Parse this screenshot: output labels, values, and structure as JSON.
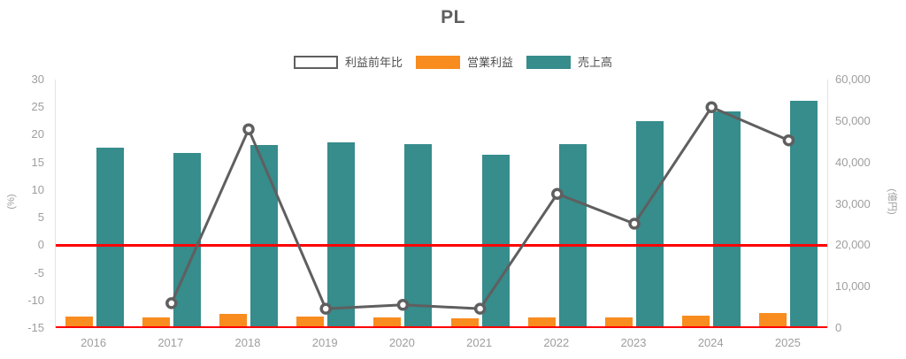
{
  "chart_data": {
    "type": "combo",
    "title": "PL",
    "categories": [
      "2016",
      "2017",
      "2018",
      "2019",
      "2020",
      "2021",
      "2022",
      "2023",
      "2024",
      "2025"
    ],
    "series": [
      {
        "key": "operating-profit",
        "name": "営業利益",
        "type": "bar",
        "axis": "right",
        "slot": 0,
        "color": "#f88c1e",
        "values": [
          2800,
          2500,
          3400,
          2800,
          2500,
          2300,
          2500,
          2600,
          3000,
          3600
        ]
      },
      {
        "key": "revenue",
        "name": "売上高",
        "type": "bar",
        "axis": "right",
        "slot": 1,
        "color": "#378c8c",
        "values": [
          43600,
          42200,
          44200,
          44900,
          44400,
          41900,
          44400,
          49900,
          52400,
          54900
        ]
      },
      {
        "key": "profit-yoy",
        "name": "利益前年比",
        "type": "line",
        "axis": "left",
        "color": "#5f5f5f",
        "marker_fill": "#ffffff",
        "values": [
          null,
          -10.5,
          21,
          -11.5,
          -10.8,
          -11.5,
          9.3,
          3.9,
          25,
          19
        ]
      }
    ],
    "legend": [
      {
        "key": "profit-yoy",
        "label": "利益前年比",
        "swatch": "outline",
        "color": "#5f5f5f"
      },
      {
        "key": "operating-profit",
        "label": "営業利益",
        "swatch": "solid",
        "color": "#f88c1e"
      },
      {
        "key": "revenue",
        "label": "売上高",
        "swatch": "solid",
        "color": "#378c8c"
      }
    ],
    "left_axis": {
      "title": "(%)",
      "min": -15,
      "max": 30,
      "ticks": [
        30,
        25,
        20,
        15,
        10,
        5,
        0,
        -5,
        -10,
        -15
      ]
    },
    "right_axis": {
      "title": "(億円)",
      "min": 0,
      "max": 60000,
      "ticks": [
        60000,
        50000,
        40000,
        30000,
        20000,
        10000,
        0
      ]
    },
    "zero_line": {
      "axis": "left",
      "value": 0,
      "color": "#ff0000"
    },
    "baseline_color": "#ff0000",
    "grid": false,
    "legend_position": "top"
  }
}
